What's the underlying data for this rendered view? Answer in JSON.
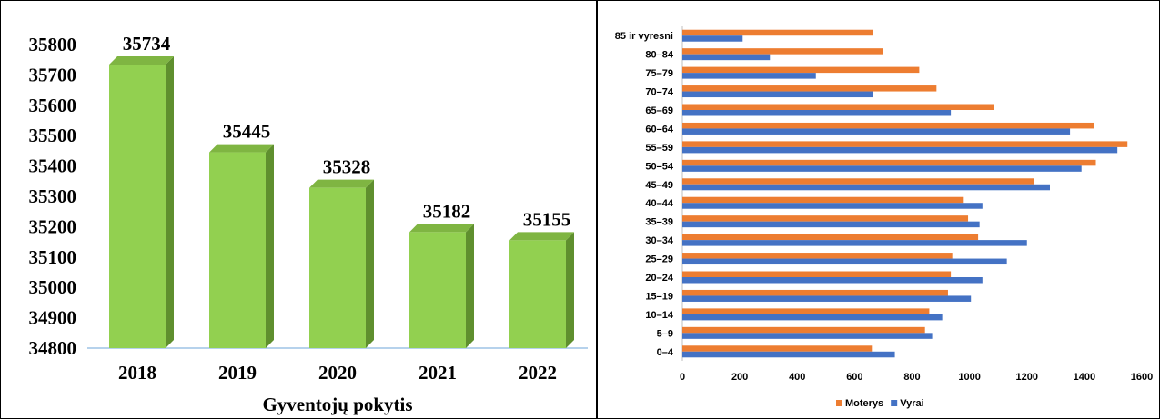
{
  "charts": {
    "population": {
      "chart_data": {
        "type": "bar",
        "title": "",
        "xlabel": "Gyventojų pokytis",
        "ylabel": "",
        "categories": [
          "2018",
          "2019",
          "2020",
          "2021",
          "2022"
        ],
        "values": [
          35734,
          35445,
          35328,
          35182,
          35155
        ],
        "data_labels": [
          "35734",
          "35445",
          "35328",
          "35182",
          "35155"
        ],
        "ylim": [
          34800,
          35800
        ],
        "yticks": [
          "34800",
          "34900",
          "35000",
          "35100",
          "35200",
          "35300",
          "35400",
          "35500",
          "35600",
          "35700",
          "35800"
        ],
        "grid": false,
        "bar_color": "#92d050",
        "bar_side_color": "#5f8f2e"
      }
    },
    "age": {
      "chart_data": {
        "type": "bar",
        "orientation": "horizontal",
        "title": "",
        "xlabel": "",
        "ylabel": "",
        "categories": [
          "0–4",
          "5–9",
          "10–14",
          "15–19",
          "20–24",
          "25–29",
          "30–34",
          "35–39",
          "40–44",
          "45–49",
          "50–54",
          "55–59",
          "60–64",
          "65–69",
          "70–74",
          "75–79",
          "80–84",
          "85 ir vyresni"
        ],
        "series": [
          {
            "name": "Moterys",
            "color": "#ed7d31",
            "values": [
              660,
              845,
              860,
              925,
              935,
              940,
              1030,
              995,
              980,
              1225,
              1440,
              1550,
              1435,
              1085,
              885,
              825,
              700,
              665
            ]
          },
          {
            "name": "Vyrai",
            "color": "#4472c4",
            "values": [
              740,
              870,
              905,
              1005,
              1045,
              1130,
              1200,
              1035,
              1045,
              1280,
              1390,
              1515,
              1350,
              935,
              665,
              465,
              305,
              210
            ]
          }
        ],
        "xlim": [
          0,
          1600
        ],
        "xticks": [
          "0",
          "200",
          "400",
          "600",
          "800",
          "1000",
          "1200",
          "1400",
          "1600"
        ],
        "grid": false,
        "legend_position": "bottom"
      }
    }
  }
}
